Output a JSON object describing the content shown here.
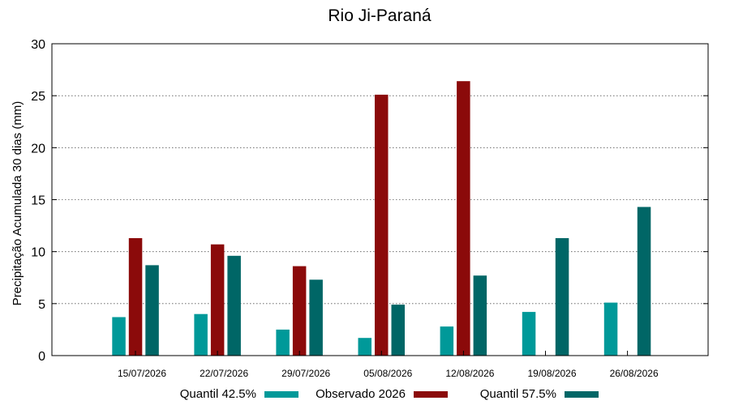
{
  "chart_data": {
    "type": "bar",
    "title": "Rio Ji-Paraná",
    "xlabel": "",
    "ylabel": "Precipitação Acumulada 30 dias (mm)",
    "ylim": [
      0,
      30
    ],
    "yticks": [
      0,
      5,
      10,
      15,
      20,
      25,
      30
    ],
    "grid": true,
    "legend_position": "bottom",
    "categories": [
      "15/07/2026",
      "22/07/2026",
      "29/07/2026",
      "05/08/2026",
      "12/08/2026",
      "19/08/2026",
      "26/08/2026"
    ],
    "series": [
      {
        "name": "Quantil 42.5%",
        "color": "#009999",
        "values": [
          3.7,
          4.0,
          2.5,
          1.7,
          2.8,
          4.2,
          5.1
        ]
      },
      {
        "name": "Observado 2026",
        "color": "#8b0a0a",
        "values": [
          11.3,
          10.7,
          8.6,
          25.1,
          26.4,
          null,
          null
        ]
      },
      {
        "name": "Quantil 57.5%",
        "color": "#006666",
        "values": [
          8.7,
          9.6,
          7.3,
          4.9,
          7.7,
          11.3,
          14.3
        ]
      }
    ]
  }
}
